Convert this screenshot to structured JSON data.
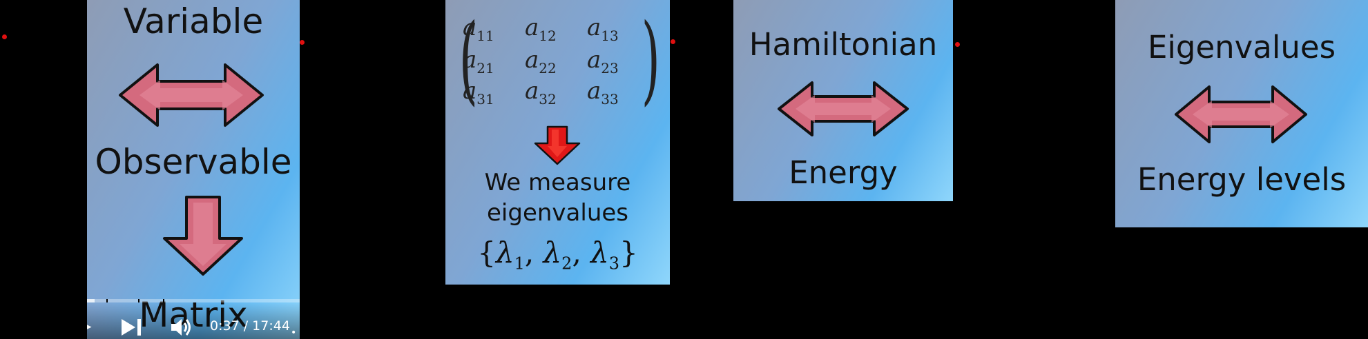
{
  "panel1": {
    "word_top": "Variable",
    "word_middle": "Observable",
    "word_bottom": "Matrix"
  },
  "player": {
    "time_current": "0:37",
    "time_total": "17:44",
    "time_display": "0:37 / 17:44",
    "progress_fraction": 0.035
  },
  "panel2": {
    "matrix": [
      [
        {
          "base": "a",
          "sub": "11"
        },
        {
          "base": "a",
          "sub": "12"
        },
        {
          "base": "a",
          "sub": "13"
        }
      ],
      [
        {
          "base": "a",
          "sub": "21"
        },
        {
          "base": "a",
          "sub": "22"
        },
        {
          "base": "a",
          "sub": "23"
        }
      ],
      [
        {
          "base": "a",
          "sub": "31"
        },
        {
          "base": "a",
          "sub": "32"
        },
        {
          "base": "a",
          "sub": "33"
        }
      ]
    ],
    "caption_line1": "We measure",
    "caption_line2": "eigenvalues",
    "eigenvalue_subs": [
      "1",
      "2",
      "3"
    ]
  },
  "panel3": {
    "top": "Hamiltonian",
    "bottom": "Energy"
  },
  "panel4": {
    "top": "Eigenvalues",
    "bottom": "Energy levels"
  },
  "colors": {
    "arrow_fill": "#d46a7e",
    "arrow_stroke": "#111111",
    "red_arrow": "#e01818",
    "marker_dot": "#e01010"
  }
}
